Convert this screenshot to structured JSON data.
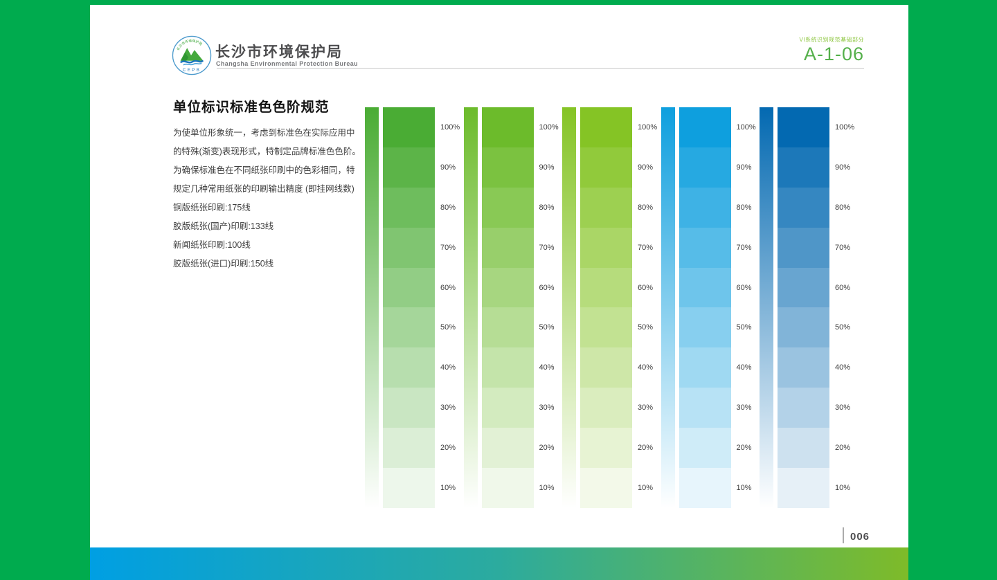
{
  "page": {
    "surround_color": "#00AB4E",
    "doc_code_label": "VI系统识别规范基础部分",
    "doc_code": "A-1-06",
    "page_number": "006",
    "footer_gradient": [
      "#009FE3",
      "#2CAB9E",
      "#7EBB29"
    ]
  },
  "header": {
    "org_name_cn": "长沙市环境保护局",
    "org_name_en": "Changsha Environmental Protection Bureau",
    "logo_arc_text": "长沙市环境保护局",
    "logo_acronym": "CEPB"
  },
  "content": {
    "title": "单位标识标准色色阶规范",
    "paragraph_lines": [
      "为使单位形象统一，考虑到标准色在实际应用中",
      "的特殊(渐变)表现形式，特制定品牌标准色色阶。",
      "为确保标准色在不同纸张印刷中的色彩相同，特",
      "规定几种常用纸张的印刷输出精度 (即挂网线数)",
      "铜版纸张印刷:175线",
      "胶版纸张(国产)印刷:133线",
      "新闻纸张印刷:100线",
      "胶版纸张(进口)印刷:150线"
    ]
  },
  "chart_data": {
    "type": "table",
    "title": "单位标识标准色色阶规范",
    "tint_labels": [
      "100%",
      "90%",
      "80%",
      "70%",
      "60%",
      "50%",
      "40%",
      "30%",
      "20%",
      "10%"
    ],
    "tint_values": [
      100,
      90,
      80,
      70,
      60,
      50,
      40,
      30,
      20,
      10
    ],
    "columns": [
      {
        "name": "standard-green",
        "base_color": "#4AAC34"
      },
      {
        "name": "mid-green",
        "base_color": "#6CBB2B"
      },
      {
        "name": "yellow-green",
        "base_color": "#85C425"
      },
      {
        "name": "cyan-blue",
        "base_color": "#0E9FDE"
      },
      {
        "name": "dark-blue",
        "base_color": "#0369B1"
      }
    ],
    "layout_hints": {
      "each_column_has": "continuous gradient strip (base color to white) plus 10 stepped tints",
      "labels_position": "right of each stepped column"
    }
  }
}
